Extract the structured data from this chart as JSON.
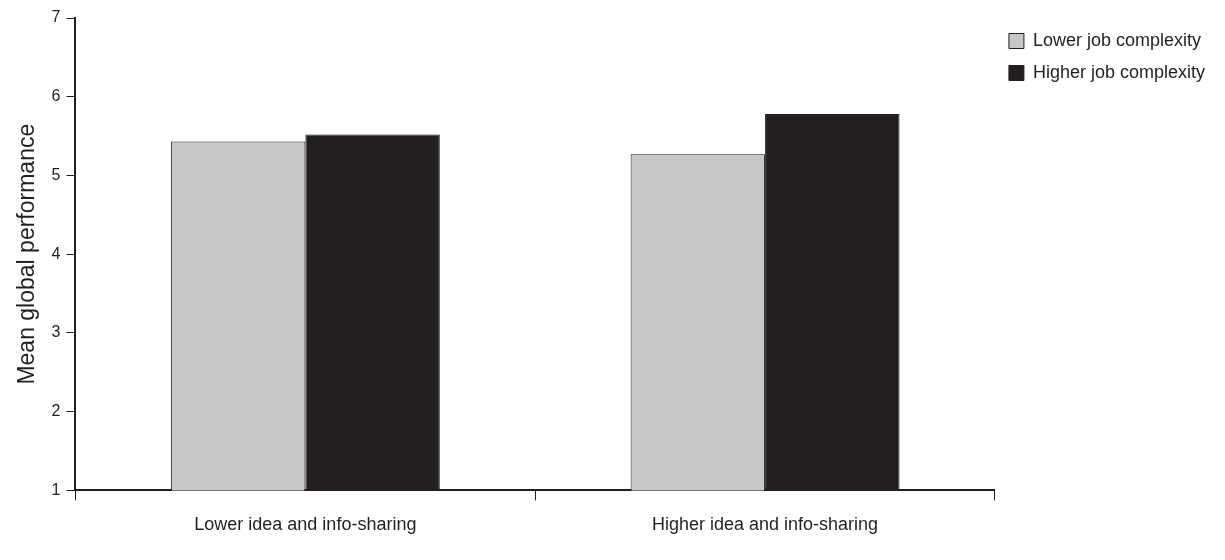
{
  "chart_data": {
    "type": "bar",
    "ylabel": "Mean global performance",
    "categories": [
      "Lower idea and info-sharing",
      "Higher idea and info-sharing"
    ],
    "series": [
      {
        "name": "Lower job complexity",
        "color": "#c6c7c9",
        "values": [
          5.43,
          5.27
        ]
      },
      {
        "name": "Higher job complexity",
        "color": "#231f20",
        "values": [
          5.52,
          5.78
        ]
      }
    ],
    "ylim": [
      1,
      7
    ],
    "yticks": [
      1,
      2,
      3,
      4,
      5,
      6,
      7
    ],
    "grid": false,
    "legend": "top right"
  }
}
